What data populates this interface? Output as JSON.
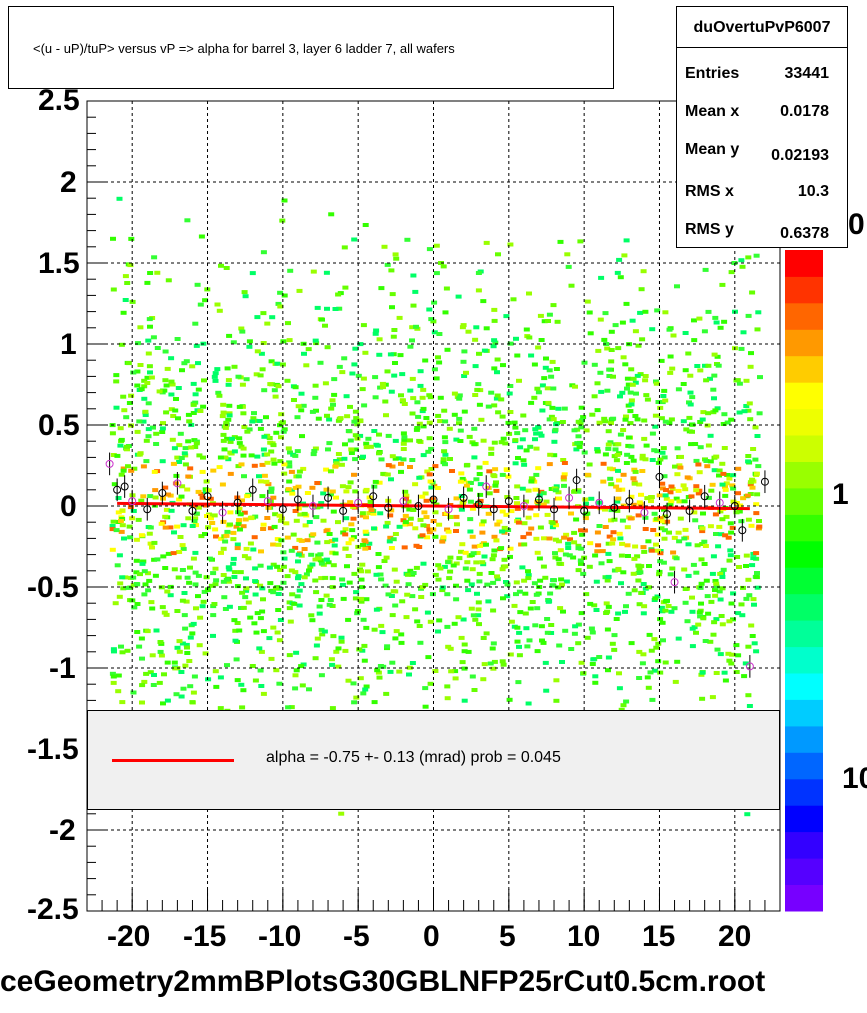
{
  "title": "<(u - uP)/tuP> versus   vP => alpha for barrel 3, layer 6 ladder 7, all wafers",
  "stats": {
    "name": "duOvertuPvP6007",
    "rows": [
      {
        "k": "Entries",
        "v": "33441"
      },
      {
        "k": "Mean x",
        "v": "0.0178"
      },
      {
        "k": "Mean y",
        "v": "0.02193"
      },
      {
        "k": "RMS x",
        "v": "10.3"
      },
      {
        "k": "RMS y",
        "v": "0.6378"
      }
    ]
  },
  "legend": {
    "label": "alpha =   -0.75 +-  0.13 (mrad) prob = 0.045",
    "color": "#ff0000"
  },
  "footer": "ceGeometry2mmBPlotsG30GBLNFP25rCut0.5cm.root",
  "z_axis_labels": [
    "0",
    "1",
    "10"
  ],
  "chart_data": {
    "type": "heatmap",
    "title": "<(u - uP)/tuP> versus   vP => alpha for barrel 3, layer 6 ladder 7, all wafers",
    "xlim": [
      -23,
      23
    ],
    "ylim": [
      -2.5,
      2.5
    ],
    "x_ticks": [
      -20,
      -15,
      -10,
      -5,
      0,
      5,
      10,
      15,
      20
    ],
    "x_tick_labels": [
      "-20",
      "-15",
      "-10",
      "-5",
      "0",
      "5",
      "10",
      "15",
      "20"
    ],
    "y_ticks": [
      -2.5,
      -2,
      -1.5,
      -1,
      -0.5,
      0,
      0.5,
      1,
      1.5,
      2,
      2.5
    ],
    "y_tick_labels": [
      "-2.5",
      "-2",
      "-1.5",
      "-1",
      "-0.5",
      "0",
      "0.5",
      "1",
      "1.5",
      "2",
      "2.5"
    ],
    "grid": true,
    "fit_line": {
      "x": [
        -21,
        21
      ],
      "y": [
        0.016,
        -0.016
      ],
      "color": "#ff0000"
    },
    "profile_points": [
      {
        "x": -21.5,
        "y": 0.26
      },
      {
        "x": -21,
        "y": 0.1
      },
      {
        "x": -20.5,
        "y": 0.12
      },
      {
        "x": -20,
        "y": 0.03
      },
      {
        "x": -19,
        "y": -0.02
      },
      {
        "x": -18,
        "y": 0.08
      },
      {
        "x": -17,
        "y": 0.14
      },
      {
        "x": -16,
        "y": -0.03
      },
      {
        "x": -15,
        "y": 0.06
      },
      {
        "x": -14,
        "y": -0.04
      },
      {
        "x": -13,
        "y": 0.02
      },
      {
        "x": -12,
        "y": 0.1
      },
      {
        "x": -11,
        "y": 0.03
      },
      {
        "x": -10,
        "y": -0.02
      },
      {
        "x": -9,
        "y": 0.04
      },
      {
        "x": -8,
        "y": 0.0
      },
      {
        "x": -7,
        "y": 0.05
      },
      {
        "x": -6,
        "y": -0.03
      },
      {
        "x": -5,
        "y": 0.02
      },
      {
        "x": -4,
        "y": 0.06
      },
      {
        "x": -3,
        "y": -0.01
      },
      {
        "x": -2,
        "y": 0.03
      },
      {
        "x": -1,
        "y": 0.0
      },
      {
        "x": 0,
        "y": 0.04
      },
      {
        "x": 1,
        "y": -0.02
      },
      {
        "x": 2,
        "y": 0.05
      },
      {
        "x": 3,
        "y": 0.01
      },
      {
        "x": 3.5,
        "y": 0.12
      },
      {
        "x": 4,
        "y": -0.02
      },
      {
        "x": 5,
        "y": 0.03
      },
      {
        "x": 6,
        "y": 0.0
      },
      {
        "x": 7,
        "y": 0.04
      },
      {
        "x": 8,
        "y": -0.02
      },
      {
        "x": 9,
        "y": 0.05
      },
      {
        "x": 9.5,
        "y": 0.16
      },
      {
        "x": 10,
        "y": -0.03
      },
      {
        "x": 11,
        "y": 0.02
      },
      {
        "x": 12,
        "y": -0.01
      },
      {
        "x": 13,
        "y": 0.03
      },
      {
        "x": 14,
        "y": -0.04
      },
      {
        "x": 15,
        "y": 0.18
      },
      {
        "x": 15.5,
        "y": -0.05
      },
      {
        "x": 16,
        "y": -0.47
      },
      {
        "x": 17,
        "y": -0.03
      },
      {
        "x": 18,
        "y": 0.06
      },
      {
        "x": 19,
        "y": 0.02
      },
      {
        "x": 20,
        "y": 0.0
      },
      {
        "x": 20.5,
        "y": -0.15
      },
      {
        "x": 21,
        "y": -0.99
      },
      {
        "x": 22,
        "y": 0.15
      }
    ]
  }
}
